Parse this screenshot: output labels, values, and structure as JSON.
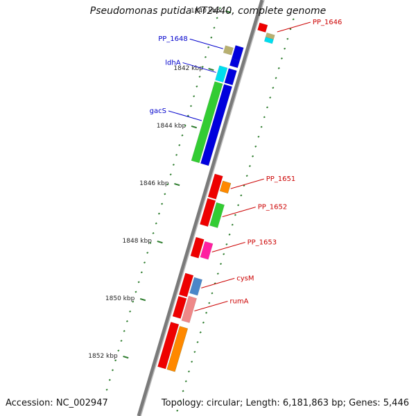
{
  "title": "Pseudomonas putida KT2440, complete genome",
  "accession": "Accession: NC_002947",
  "summary": "Topology: circular; Length: 6,181,863 bp; Genes: 5,446",
  "colors": {
    "backbone": "#7a7a7a",
    "tick": "#2e7d2e",
    "label_forward": "#0000cc",
    "label_reverse": "#cc0000"
  },
  "ticks": [
    {
      "kbp": 1840,
      "label": "1840 kbp"
    },
    {
      "kbp": 1842,
      "label": "1842 kbp"
    },
    {
      "kbp": 1844,
      "label": "1844 kbp"
    },
    {
      "kbp": 1846,
      "label": "1846 kbp"
    },
    {
      "kbp": 1848,
      "label": "1848 kbp"
    },
    {
      "kbp": 1850,
      "label": "1850 kbp"
    },
    {
      "kbp": 1852,
      "label": "1852 kbp"
    }
  ],
  "genes": [
    {
      "name": "PP_1648",
      "strand": "forward",
      "start_kbp": 1841.1,
      "end_kbp": 1841.35,
      "color": "#b8b070"
    },
    {
      "name": "",
      "strand": "forward",
      "start_kbp": 1841.0,
      "end_kbp": 1841.45,
      "color": "#0000dd"
    },
    {
      "name": "",
      "strand": "forward",
      "start_kbp": 1841.45,
      "end_kbp": 1841.7,
      "color": "#0000dd"
    },
    {
      "name": "ldhA",
      "strand": "forward",
      "start_kbp": 1841.8,
      "end_kbp": 1842.3,
      "color": "#00ddee"
    },
    {
      "name": "",
      "strand": "forward",
      "start_kbp": 1841.8,
      "end_kbp": 1842.3,
      "color": "#0000dd"
    },
    {
      "name": "gacS",
      "strand": "forward",
      "start_kbp": 1842.35,
      "end_kbp": 1845.1,
      "color": "#33cc33"
    },
    {
      "name": "",
      "strand": "forward",
      "start_kbp": 1842.35,
      "end_kbp": 1845.1,
      "color": "#0000dd"
    },
    {
      "name": "PP_1646",
      "strand": "reverse",
      "start_kbp": 1840.05,
      "end_kbp": 1840.3,
      "color": "#ee0000"
    },
    {
      "name": "",
      "strand": "reverse",
      "start_kbp": 1840.3,
      "end_kbp": 1840.45,
      "color": "#b8b070"
    },
    {
      "name": "",
      "strand": "reverse",
      "start_kbp": 1840.45,
      "end_kbp": 1840.6,
      "color": "#00ddee"
    },
    {
      "name": "PP_1651",
      "strand": "reverse",
      "start_kbp": 1845.45,
      "end_kbp": 1845.8,
      "color": "#33cc33"
    },
    {
      "name": "",
      "strand": "reverse",
      "start_kbp": 1845.45,
      "end_kbp": 1845.8,
      "color": "#ff8800"
    },
    {
      "name": "",
      "strand": "reverse",
      "start_kbp": 1845.3,
      "end_kbp": 1846.1,
      "color": "#ee0000"
    },
    {
      "name": "PP_1652",
      "strand": "reverse",
      "start_kbp": 1846.2,
      "end_kbp": 1847.0,
      "color": "#33cc33"
    },
    {
      "name": "",
      "strand": "reverse",
      "start_kbp": 1846.15,
      "end_kbp": 1847.05,
      "color": "#ee0000"
    },
    {
      "name": "PP_1653",
      "strand": "reverse",
      "start_kbp": 1847.55,
      "end_kbp": 1848.1,
      "color": "#ff1fa0"
    },
    {
      "name": "",
      "strand": "reverse",
      "start_kbp": 1847.5,
      "end_kbp": 1848.15,
      "color": "#ee0000"
    },
    {
      "name": "cysM",
      "strand": "reverse",
      "start_kbp": 1848.8,
      "end_kbp": 1849.35,
      "color": "#4a86c8"
    },
    {
      "name": "",
      "strand": "reverse",
      "start_kbp": 1848.75,
      "end_kbp": 1849.5,
      "color": "#ee0000"
    },
    {
      "name": "rumA",
      "strand": "reverse",
      "start_kbp": 1849.45,
      "end_kbp": 1850.3,
      "color": "#ee8888"
    },
    {
      "name": "",
      "strand": "reverse",
      "start_kbp": 1849.55,
      "end_kbp": 1850.25,
      "color": "#ee0000"
    },
    {
      "name": "",
      "strand": "reverse",
      "start_kbp": 1850.45,
      "end_kbp": 1852.0,
      "color": "#ee0000"
    },
    {
      "name": "",
      "strand": "reverse",
      "start_kbp": 1850.5,
      "end_kbp": 1852.0,
      "color": "#33cc33"
    },
    {
      "name": "",
      "strand": "reverse",
      "start_kbp": 1850.5,
      "end_kbp": 1852.0,
      "color": "#ff8800"
    }
  ]
}
